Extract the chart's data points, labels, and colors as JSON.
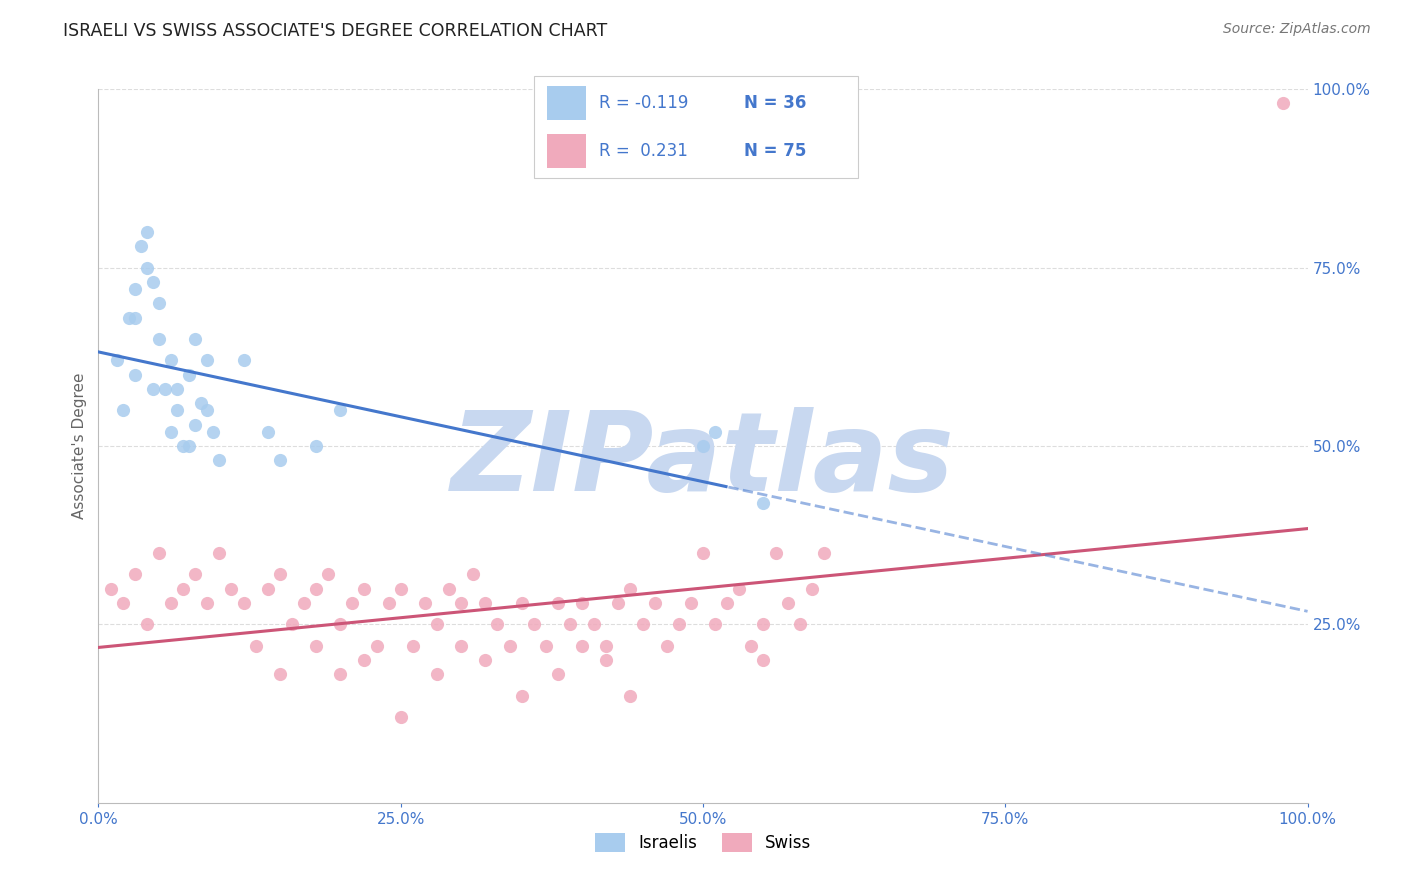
{
  "title": "ISRAELI VS SWISS ASSOCIATE'S DEGREE CORRELATION CHART",
  "source": "Source: ZipAtlas.com",
  "ylabel": "Associate's Degree",
  "x_tick_labels": [
    "0.0%",
    "25.0%",
    "50.0%",
    "75.0%",
    "100.0%"
  ],
  "x_tick_vals": [
    0,
    25,
    50,
    75,
    100
  ],
  "y_tick_labels_right": [
    "25.0%",
    "50.0%",
    "75.0%",
    "100.0%"
  ],
  "y_tick_vals_right": [
    25,
    50,
    75,
    100
  ],
  "xlim": [
    0,
    100
  ],
  "ylim": [
    0,
    100
  ],
  "legend_labels": [
    "Israelis",
    "Swiss"
  ],
  "legend_R": [
    "R = -0.119",
    "R =  0.231"
  ],
  "legend_N": [
    "N = 36",
    "N = 75"
  ],
  "color_blue": "#A8CCEE",
  "color_pink": "#F0AABC",
  "color_blue_line": "#4477CC",
  "color_pink_line": "#CC5577",
  "color_text_blue": "#4477CC",
  "color_grid": "#DDDDDD",
  "color_bg": "#FFFFFF",
  "watermark": "ZIPatlas",
  "watermark_color": "#C8D8F0",
  "isr_x": [
    1.5,
    2.0,
    2.5,
    3.0,
    3.5,
    4.0,
    4.5,
    5.0,
    5.5,
    6.0,
    6.5,
    7.0,
    7.5,
    8.0,
    8.5,
    9.0,
    9.5,
    10.0,
    3.0,
    4.5,
    6.0,
    7.5,
    9.0,
    15.0,
    18.0,
    50.0,
    51.0,
    55.0,
    12.0,
    8.0,
    5.0,
    6.5,
    4.0,
    3.0,
    14.0,
    20.0
  ],
  "isr_y": [
    62,
    55,
    68,
    72,
    78,
    80,
    73,
    65,
    58,
    62,
    55,
    50,
    60,
    53,
    56,
    62,
    52,
    48,
    60,
    58,
    52,
    50,
    55,
    48,
    50,
    50,
    52,
    42,
    62,
    65,
    70,
    58,
    75,
    68,
    52,
    55
  ],
  "swiss_x": [
    1,
    2,
    3,
    4,
    5,
    6,
    7,
    8,
    9,
    10,
    11,
    12,
    13,
    14,
    15,
    16,
    17,
    18,
    19,
    20,
    21,
    22,
    23,
    24,
    25,
    26,
    27,
    28,
    29,
    30,
    31,
    32,
    33,
    34,
    35,
    36,
    37,
    38,
    39,
    40,
    41,
    42,
    43,
    44,
    45,
    46,
    47,
    48,
    49,
    50,
    51,
    52,
    53,
    54,
    55,
    56,
    57,
    58,
    59,
    60,
    28,
    30,
    35,
    32,
    40,
    38,
    42,
    44,
    20,
    22,
    18,
    15,
    25,
    55,
    98
  ],
  "swiss_y": [
    30,
    28,
    32,
    25,
    35,
    28,
    30,
    32,
    28,
    35,
    30,
    28,
    22,
    30,
    32,
    25,
    28,
    30,
    32,
    25,
    28,
    30,
    22,
    28,
    30,
    22,
    28,
    25,
    30,
    28,
    32,
    28,
    25,
    22,
    28,
    25,
    22,
    28,
    25,
    28,
    25,
    22,
    28,
    30,
    25,
    28,
    22,
    25,
    28,
    35,
    25,
    28,
    30,
    22,
    25,
    35,
    28,
    25,
    30,
    35,
    18,
    22,
    15,
    20,
    22,
    18,
    20,
    15,
    18,
    20,
    22,
    18,
    12,
    20,
    98
  ]
}
